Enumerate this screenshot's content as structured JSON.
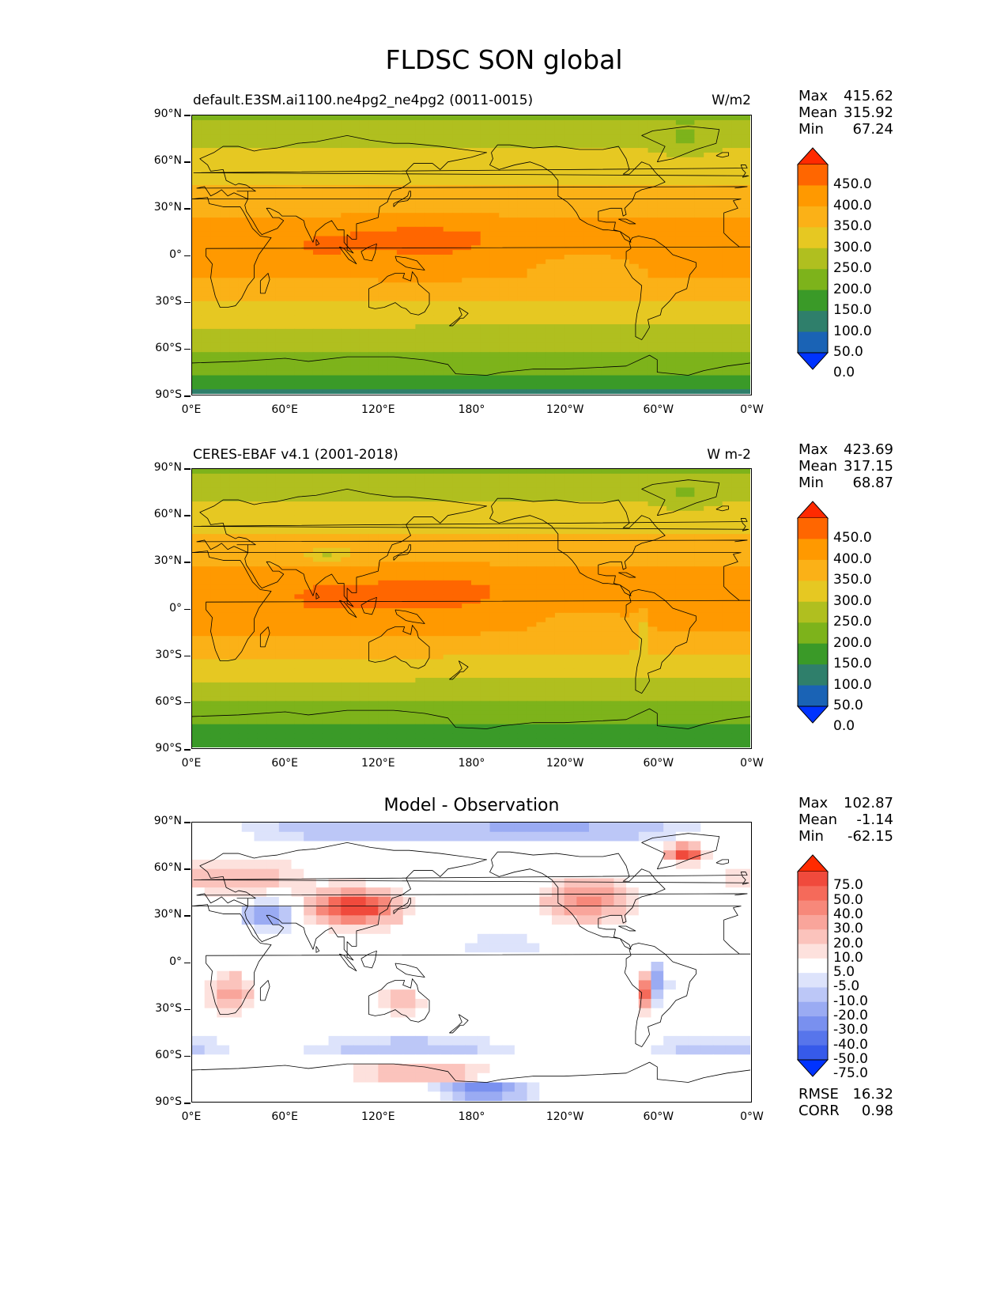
{
  "title": "FLDSC SON global",
  "panels": [
    {
      "left_title": "default.E3SM.ai1100.ne4pg2_ne4pg2 (0011-0015)",
      "right_title": "W/m2",
      "center_title": "",
      "stats": {
        "max_label": "Max",
        "max": "415.62",
        "mean_label": "Mean",
        "mean": "315.92",
        "min_label": "Min",
        "min": "67.24"
      }
    },
    {
      "left_title": "CERES-EBAF v4.1 (2001-2018)",
      "right_title": "W m-2",
      "center_title": "",
      "stats": {
        "max_label": "Max",
        "max": "423.69",
        "mean_label": "Mean",
        "mean": "317.15",
        "min_label": "Min",
        "min": "68.87"
      }
    },
    {
      "left_title": "",
      "right_title": "",
      "center_title": "Model - Observation",
      "stats": {
        "max_label": "Max",
        "max": "102.87",
        "mean_label": "Mean",
        "mean": "-1.14",
        "min_label": "Min",
        "min": "-62.15"
      },
      "metrics": {
        "rmse_label": "RMSE",
        "rmse": "16.32",
        "corr_label": "CORR",
        "corr": "0.98"
      }
    }
  ],
  "axes": {
    "lat_ticks": [
      "90°N",
      "60°N",
      "30°N",
      "0°",
      "30°S",
      "60°S",
      "90°S"
    ],
    "lon_ticks": [
      "0°E",
      "60°E",
      "120°E",
      "180°",
      "120°W",
      "60°W",
      "0°W"
    ]
  },
  "colorbars": {
    "field": {
      "labels": [
        "450.0",
        "400.0",
        "350.0",
        "300.0",
        "250.0",
        "200.0",
        "150.0",
        "100.0",
        "50.0",
        "0.0"
      ],
      "colors": [
        "#ff2a00",
        "#ff6600",
        "#ff9900",
        "#fbb117",
        "#e6c822",
        "#b0bf1f",
        "#7db31b",
        "#3a9a28",
        "#2f7f6b",
        "#1a63b5",
        "#0033ff"
      ]
    },
    "diff": {
      "labels": [
        "75.0",
        "50.0",
        "40.0",
        "30.0",
        "20.0",
        "10.0",
        "5.0",
        "-5.0",
        "-10.0",
        "-20.0",
        "-30.0",
        "-40.0",
        "-50.0",
        "-75.0"
      ],
      "colors": [
        "#ff2a00",
        "#f04a3c",
        "#f56a5a",
        "#f7887a",
        "#f9a59b",
        "#fbc3bc",
        "#fde1dd",
        "#ffffff",
        "#dde3fb",
        "#bcc7f7",
        "#9aabf3",
        "#7990ef",
        "#5775eb",
        "#365aea",
        "#0033ff"
      ]
    }
  },
  "chart_data": [
    {
      "type": "heatmap",
      "title": "default.E3SM.ai1100.ne4pg2_ne4pg2 (0011-0015)",
      "units": "W/m2",
      "x_range": [
        0,
        360
      ],
      "y_range": [
        -90,
        90
      ],
      "levels": [
        0,
        50,
        100,
        150,
        200,
        250,
        300,
        350,
        400,
        450
      ],
      "stats": {
        "max": 415.62,
        "mean": 315.92,
        "min": 67.24
      },
      "zonal_profile": {
        "lat": [
          90,
          75,
          60,
          45,
          30,
          15,
          0,
          -15,
          -30,
          -45,
          -60,
          -75,
          -90
        ],
        "value": [
          190,
          235,
          270,
          300,
          335,
          380,
          370,
          355,
          300,
          255,
          205,
          160,
          90
        ]
      }
    },
    {
      "type": "heatmap",
      "title": "CERES-EBAF v4.1 (2001-2018)",
      "units": "W m-2",
      "x_range": [
        0,
        360
      ],
      "y_range": [
        -90,
        90
      ],
      "levels": [
        0,
        50,
        100,
        150,
        200,
        250,
        300,
        350,
        400,
        450
      ],
      "stats": {
        "max": 423.69,
        "mean": 317.15,
        "min": 68.87
      },
      "zonal_profile": {
        "lat": [
          90,
          75,
          60,
          45,
          30,
          15,
          0,
          -15,
          -30,
          -45,
          -60,
          -75,
          -90
        ],
        "value": [
          195,
          235,
          270,
          310,
          345,
          385,
          375,
          355,
          305,
          255,
          205,
          150,
          95
        ]
      }
    },
    {
      "type": "heatmap",
      "title": "Model - Observation",
      "x_range": [
        0,
        360
      ],
      "y_range": [
        -90,
        90
      ],
      "levels": [
        -75,
        -50,
        -40,
        -30,
        -20,
        -10,
        -5,
        5,
        10,
        20,
        30,
        40,
        50,
        75
      ],
      "stats": {
        "max": 102.87,
        "mean": -1.14,
        "min": -62.15
      },
      "metrics": {
        "rmse": 16.32,
        "corr": 0.98
      }
    }
  ]
}
